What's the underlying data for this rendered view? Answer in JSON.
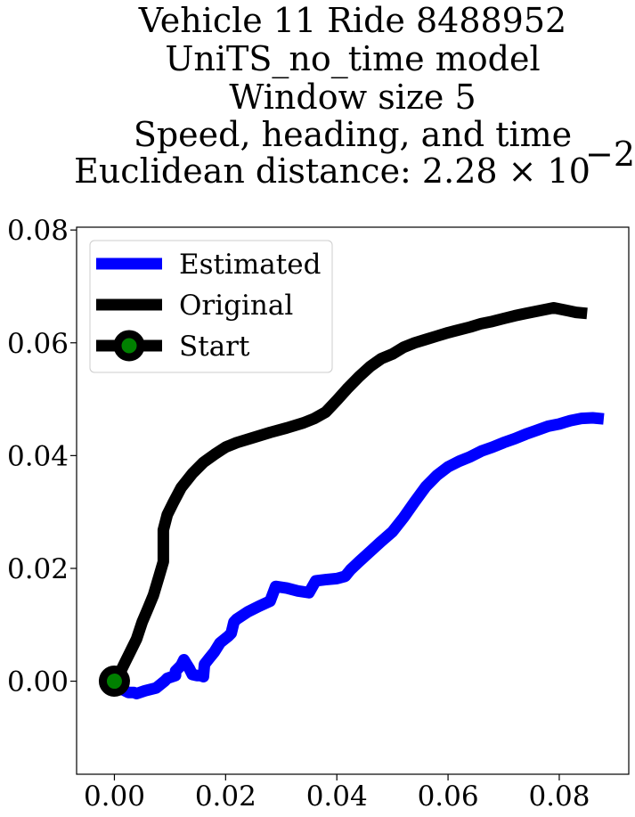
{
  "chart_data": {
    "type": "line",
    "title_lines": [
      "Vehicle 11 Ride 8488952",
      "UniTS_no_time model",
      "Window size 5",
      "Speed, heading, and time",
      "Euclidean distance: 2.28 × 10"
    ],
    "title_exponent": "−2",
    "xlabel": "",
    "ylabel": "",
    "xlim": [
      -0.0068,
      0.0925
    ],
    "ylim": [
      -0.0165,
      0.0805
    ],
    "x_ticks": [
      0.0,
      0.02,
      0.04,
      0.06,
      0.08
    ],
    "x_tick_labels": [
      "0.00",
      "0.02",
      "0.04",
      "0.06",
      "0.08"
    ],
    "y_ticks": [
      0.0,
      0.02,
      0.04,
      0.06,
      0.08
    ],
    "y_tick_labels": [
      "0.00",
      "0.02",
      "0.04",
      "0.06",
      "0.08"
    ],
    "legend_position": "top-left",
    "series": [
      {
        "name": "Estimated",
        "color": "#0000ff",
        "points": [
          [
            0.0,
            0.0
          ],
          [
            0.0015,
            -0.0015
          ],
          [
            0.0025,
            -0.002
          ],
          [
            0.0035,
            -0.002
          ],
          [
            0.004,
            -0.0022
          ],
          [
            0.0055,
            -0.0017
          ],
          [
            0.0075,
            -0.0012
          ],
          [
            0.009,
            0.0
          ],
          [
            0.0095,
            0.0005
          ],
          [
            0.011,
            0.001
          ],
          [
            0.011,
            0.0018
          ],
          [
            0.012,
            0.0028
          ],
          [
            0.0125,
            0.0038
          ],
          [
            0.013,
            0.003
          ],
          [
            0.0135,
            0.0022
          ],
          [
            0.014,
            0.0012
          ],
          [
            0.0148,
            0.001
          ],
          [
            0.0155,
            0.001
          ],
          [
            0.016,
            0.0008
          ],
          [
            0.0162,
            0.003
          ],
          [
            0.017,
            0.004
          ],
          [
            0.018,
            0.0052
          ],
          [
            0.019,
            0.0068
          ],
          [
            0.0195,
            0.0072
          ],
          [
            0.0205,
            0.008
          ],
          [
            0.021,
            0.0085
          ],
          [
            0.0215,
            0.0105
          ],
          [
            0.022,
            0.011
          ],
          [
            0.024,
            0.0123
          ],
          [
            0.026,
            0.0133
          ],
          [
            0.028,
            0.0142
          ],
          [
            0.029,
            0.0168
          ],
          [
            0.031,
            0.0165
          ],
          [
            0.033,
            0.016
          ],
          [
            0.035,
            0.0157
          ],
          [
            0.0362,
            0.0178
          ],
          [
            0.038,
            0.018
          ],
          [
            0.04,
            0.0182
          ],
          [
            0.0415,
            0.0186
          ],
          [
            0.0425,
            0.0198
          ],
          [
            0.044,
            0.0212
          ],
          [
            0.046,
            0.023
          ],
          [
            0.048,
            0.0248
          ],
          [
            0.05,
            0.0265
          ],
          [
            0.052,
            0.029
          ],
          [
            0.054,
            0.0318
          ],
          [
            0.056,
            0.0345
          ],
          [
            0.058,
            0.0365
          ],
          [
            0.06,
            0.038
          ],
          [
            0.062,
            0.039
          ],
          [
            0.064,
            0.0398
          ],
          [
            0.066,
            0.0408
          ],
          [
            0.068,
            0.0415
          ],
          [
            0.07,
            0.0423
          ],
          [
            0.072,
            0.043
          ],
          [
            0.074,
            0.0438
          ],
          [
            0.076,
            0.0445
          ],
          [
            0.078,
            0.0452
          ],
          [
            0.08,
            0.0456
          ],
          [
            0.082,
            0.0462
          ],
          [
            0.084,
            0.0466
          ],
          [
            0.086,
            0.0467
          ],
          [
            0.088,
            0.0465
          ]
        ]
      },
      {
        "name": "Original",
        "color": "#000000",
        "points": [
          [
            0.0,
            0.0
          ],
          [
            0.001,
            0.0015
          ],
          [
            0.002,
            0.0035
          ],
          [
            0.003,
            0.0055
          ],
          [
            0.004,
            0.0075
          ],
          [
            0.005,
            0.0105
          ],
          [
            0.006,
            0.0128
          ],
          [
            0.007,
            0.0152
          ],
          [
            0.008,
            0.0185
          ],
          [
            0.0088,
            0.0212
          ],
          [
            0.0088,
            0.0268
          ],
          [
            0.0095,
            0.0295
          ],
          [
            0.0105,
            0.0315
          ],
          [
            0.012,
            0.0343
          ],
          [
            0.014,
            0.0368
          ],
          [
            0.016,
            0.0388
          ],
          [
            0.018,
            0.0402
          ],
          [
            0.02,
            0.0415
          ],
          [
            0.022,
            0.0423
          ],
          [
            0.025,
            0.0432
          ],
          [
            0.028,
            0.0441
          ],
          [
            0.031,
            0.0449
          ],
          [
            0.034,
            0.0458
          ],
          [
            0.036,
            0.0466
          ],
          [
            0.038,
            0.0477
          ],
          [
            0.04,
            0.0498
          ],
          [
            0.042,
            0.052
          ],
          [
            0.044,
            0.054
          ],
          [
            0.046,
            0.0558
          ],
          [
            0.048,
            0.0572
          ],
          [
            0.05,
            0.058
          ],
          [
            0.052,
            0.0592
          ],
          [
            0.054,
            0.06
          ],
          [
            0.056,
            0.0606
          ],
          [
            0.058,
            0.0612
          ],
          [
            0.06,
            0.0618
          ],
          [
            0.062,
            0.0623
          ],
          [
            0.064,
            0.0628
          ],
          [
            0.066,
            0.0634
          ],
          [
            0.068,
            0.0638
          ],
          [
            0.07,
            0.0643
          ],
          [
            0.072,
            0.0648
          ],
          [
            0.074,
            0.0652
          ],
          [
            0.076,
            0.0656
          ],
          [
            0.078,
            0.066
          ],
          [
            0.079,
            0.0662
          ],
          [
            0.081,
            0.0658
          ],
          [
            0.083,
            0.0654
          ],
          [
            0.085,
            0.0652
          ]
        ]
      }
    ],
    "start_marker": {
      "name": "Start",
      "x": 0.0,
      "y": 0.0,
      "edge_color": "#000000",
      "face_color": "#008000"
    }
  }
}
